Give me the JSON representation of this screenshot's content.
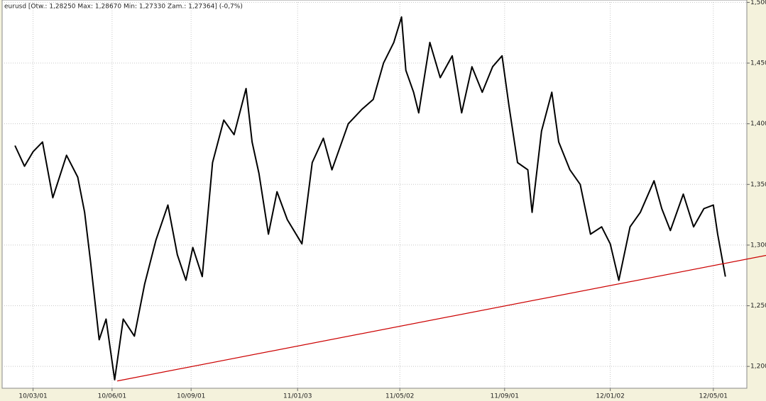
{
  "chart_data": {
    "type": "line",
    "title": "eurusd [Otw.: 1,28250  Max: 1,28670  Min: 1,27330  Zam.: 1,27364] (-0,7%)",
    "x": [
      "2010-02-08",
      "2010-02-19",
      "2010-03-01",
      "2010-03-12",
      "2010-03-24",
      "2010-04-09",
      "2010-04-22",
      "2010-04-30",
      "2010-05-07",
      "2010-05-17",
      "2010-05-25",
      "2010-06-04",
      "2010-06-14",
      "2010-06-27",
      "2010-07-09",
      "2010-07-22",
      "2010-08-05",
      "2010-08-16",
      "2010-08-26",
      "2010-09-03",
      "2010-09-14",
      "2010-09-26",
      "2010-10-09",
      "2010-10-21",
      "2010-11-04",
      "2010-11-11",
      "2010-11-19",
      "2010-11-30",
      "2010-12-10",
      "2010-12-22",
      "2011-01-08",
      "2011-01-20",
      "2011-02-02",
      "2011-02-12",
      "2011-03-03",
      "2011-03-19",
      "2011-04-01",
      "2011-04-13",
      "2011-04-25",
      "2011-05-04",
      "2011-05-09",
      "2011-05-18",
      "2011-05-24",
      "2011-06-06",
      "2011-06-18",
      "2011-07-02",
      "2011-07-13",
      "2011-07-25",
      "2011-08-06",
      "2011-08-18",
      "2011-08-29",
      "2011-09-06",
      "2011-09-16",
      "2011-09-28",
      "2011-10-03",
      "2011-10-14",
      "2011-10-26",
      "2011-11-03",
      "2011-11-16",
      "2011-11-28",
      "2011-12-10",
      "2011-12-23",
      "2012-01-02",
      "2012-01-12",
      "2012-01-25",
      "2012-02-06",
      "2012-02-22",
      "2012-03-02",
      "2012-03-12",
      "2012-03-27",
      "2012-04-08",
      "2012-04-20",
      "2012-05-01",
      "2012-05-06",
      "2012-05-15"
    ],
    "series": [
      {
        "name": "eurusd",
        "color": "#000000",
        "values": [
          1.382,
          1.365,
          1.377,
          1.385,
          1.339,
          1.374,
          1.356,
          1.327,
          1.286,
          1.222,
          1.239,
          1.189,
          1.239,
          1.225,
          1.268,
          1.304,
          1.333,
          1.292,
          1.271,
          1.298,
          1.274,
          1.368,
          1.403,
          1.391,
          1.429,
          1.385,
          1.359,
          1.309,
          1.344,
          1.321,
          1.301,
          1.368,
          1.388,
          1.362,
          1.4,
          1.412,
          1.42,
          1.45,
          1.467,
          1.488,
          1.444,
          1.426,
          1.409,
          1.467,
          1.438,
          1.456,
          1.409,
          1.447,
          1.426,
          1.447,
          1.456,
          1.415,
          1.368,
          1.362,
          1.327,
          1.394,
          1.426,
          1.385,
          1.362,
          1.35,
          1.309,
          1.315,
          1.301,
          1.271,
          1.315,
          1.327,
          1.353,
          1.33,
          1.312,
          1.342,
          1.315,
          1.33,
          1.333,
          1.309,
          1.274
        ]
      }
    ],
    "trendline": {
      "color": "#cc0000",
      "x": [
        "2010-06-07",
        "2012-05-15"
      ],
      "values": [
        1.188,
        1.285
      ]
    },
    "xlim": [
      "2010-01-24",
      "2012-06-09"
    ],
    "xticks": [
      {
        "value": "2010-03-01",
        "label": "10/03/01"
      },
      {
        "value": "2010-06-01",
        "label": "10/06/01"
      },
      {
        "value": "2010-09-01",
        "label": "10/09/01"
      },
      {
        "value": "2011-01-03",
        "label": "11/01/03"
      },
      {
        "value": "2011-05-02",
        "label": "11/05/02"
      },
      {
        "value": "2011-09-01",
        "label": "11/09/01"
      },
      {
        "value": "2012-01-02",
        "label": "12/01/02"
      },
      {
        "value": "2012-05-01",
        "label": "12/05/01"
      }
    ],
    "ylim": [
      1.182,
      1.502
    ],
    "yticks": [
      {
        "value": 1.2,
        "label": "1,200"
      },
      {
        "value": 1.25,
        "label": "1,250"
      },
      {
        "value": 1.3,
        "label": "1,300"
      },
      {
        "value": 1.35,
        "label": "1,350"
      },
      {
        "value": 1.4,
        "label": "1,400"
      },
      {
        "value": 1.45,
        "label": "1,450"
      },
      {
        "value": 1.5,
        "label": "1,500"
      }
    ],
    "grid": true
  }
}
